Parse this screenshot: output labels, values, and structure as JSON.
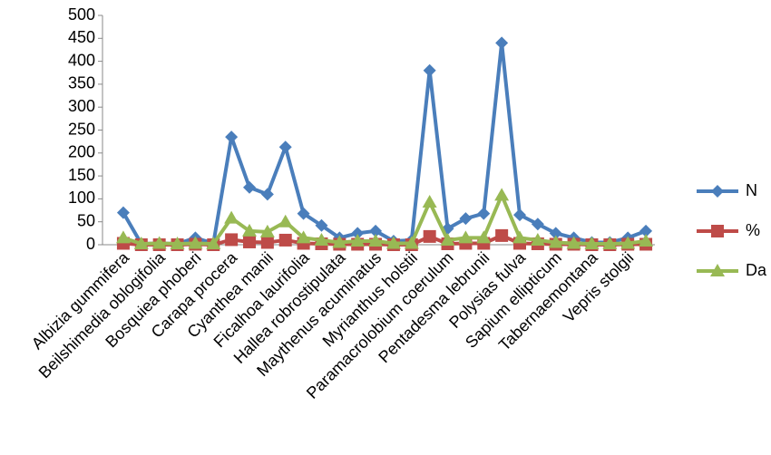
{
  "chart_data": {
    "type": "line",
    "categories": [
      "Albizia gummifera",
      null,
      "Beilshimedia oblogifolia",
      null,
      "Bosquiea phoberi",
      null,
      "Carapa procera",
      null,
      "Cyanthea manii",
      null,
      "Ficalhoa laurifolia",
      null,
      "Hallea robrostipulata",
      null,
      "Maythenus acuminatus",
      null,
      "Myrianthus holstii",
      null,
      "Paramacrolobium coerulum",
      null,
      "Pentadesma lebrunii",
      null,
      "Polysias fulva",
      null,
      "Sapium ellipticum",
      null,
      "Tabernaemontana",
      null,
      "Vepris stolgii",
      null
    ],
    "series": [
      {
        "name": "N",
        "color": "#4a7ebb",
        "marker": "diamond",
        "values": [
          70,
          2,
          3,
          2,
          15,
          3,
          235,
          125,
          110,
          213,
          68,
          42,
          15,
          25,
          30,
          8,
          10,
          380,
          35,
          57,
          68,
          440,
          65,
          45,
          25,
          15,
          5,
          5,
          15,
          30
        ]
      },
      {
        "name": "%",
        "color": "#be4b48",
        "marker": "square",
        "values": [
          3,
          0,
          0,
          0,
          1,
          0,
          11,
          6,
          5,
          10,
          3,
          2,
          1,
          1,
          1,
          0,
          0,
          18,
          2,
          3,
          3,
          20,
          3,
          2,
          1,
          1,
          0,
          0,
          1,
          1
        ]
      },
      {
        "name": "Da",
        "color": "#98b954",
        "marker": "triangle",
        "values": [
          15,
          2,
          3,
          2,
          3,
          2,
          58,
          30,
          28,
          50,
          15,
          10,
          5,
          8,
          8,
          3,
          3,
          93,
          10,
          15,
          15,
          108,
          15,
          10,
          5,
          3,
          2,
          2,
          3,
          8
        ]
      }
    ],
    "ylim": [
      0,
      500
    ],
    "yticks": [
      0,
      50,
      100,
      150,
      200,
      250,
      300,
      350,
      400,
      450,
      500
    ],
    "grid": false,
    "legend": "right"
  }
}
